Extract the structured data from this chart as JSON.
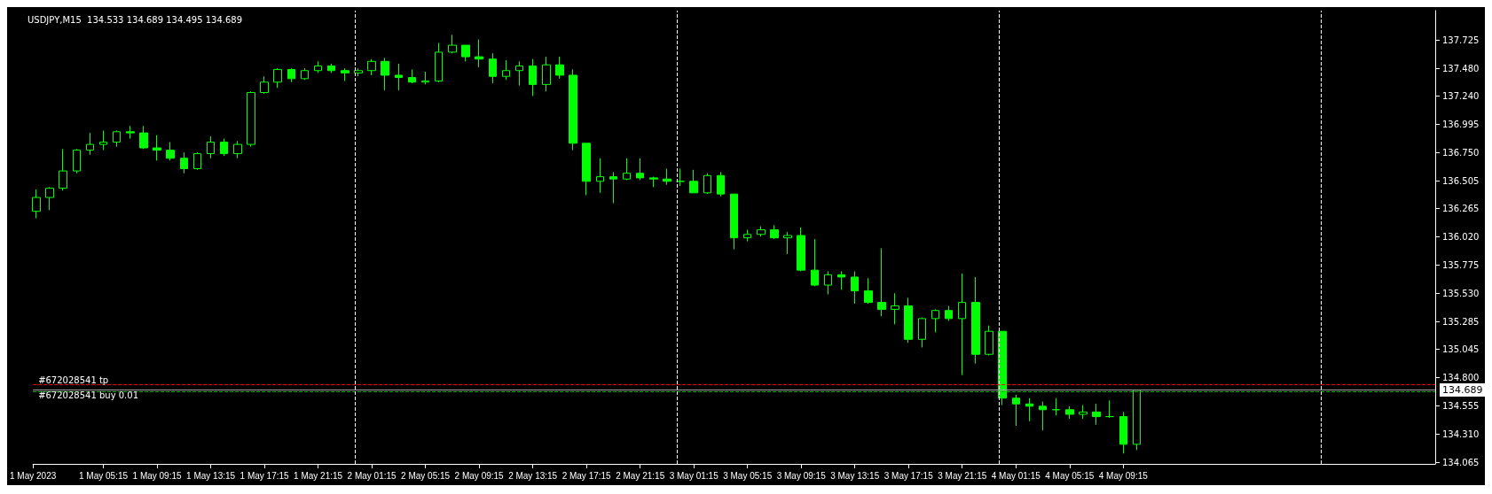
{
  "chart_data": {
    "type": "candlestick",
    "title": "USDJPY,M15  134.533 134.689 134.495 134.689",
    "x": [
      "2023-05-01T00:15",
      "2023-05-01T01:15",
      "2023-05-01T02:15",
      "2023-05-01T03:15",
      "2023-05-01T04:15",
      "2023-05-01T05:15",
      "2023-05-01T06:15",
      "2023-05-01T07:15",
      "2023-05-01T08:15",
      "2023-05-01T09:15",
      "2023-05-01T10:15",
      "2023-05-01T11:15",
      "2023-05-01T12:15",
      "2023-05-01T13:15",
      "2023-05-01T14:15",
      "2023-05-01T15:15",
      "2023-05-01T16:15",
      "2023-05-01T17:15",
      "2023-05-01T18:15",
      "2023-05-01T19:15",
      "2023-05-01T20:15",
      "2023-05-01T21:15",
      "2023-05-01T22:15",
      "2023-05-01T23:15",
      "2023-05-02T00:15",
      "2023-05-02T01:15",
      "2023-05-02T02:15",
      "2023-05-02T03:15",
      "2023-05-02T04:15",
      "2023-05-02T05:15",
      "2023-05-02T06:15",
      "2023-05-02T07:15",
      "2023-05-02T08:15",
      "2023-05-02T09:15",
      "2023-05-02T10:15",
      "2023-05-02T11:15",
      "2023-05-02T12:15",
      "2023-05-02T13:15",
      "2023-05-02T14:15",
      "2023-05-02T15:15",
      "2023-05-02T16:15",
      "2023-05-02T17:15",
      "2023-05-02T18:15",
      "2023-05-02T19:15",
      "2023-05-02T20:15",
      "2023-05-02T21:15",
      "2023-05-02T22:15",
      "2023-05-02T23:15",
      "2023-05-03T00:15",
      "2023-05-03T01:15",
      "2023-05-03T02:15",
      "2023-05-03T03:15",
      "2023-05-03T04:15",
      "2023-05-03T05:15",
      "2023-05-03T06:15",
      "2023-05-03T07:15",
      "2023-05-03T08:15",
      "2023-05-03T09:15",
      "2023-05-03T10:15",
      "2023-05-03T11:15",
      "2023-05-03T12:15",
      "2023-05-03T13:15",
      "2023-05-03T14:15",
      "2023-05-03T15:15",
      "2023-05-03T16:15",
      "2023-05-03T17:15",
      "2023-05-03T18:15",
      "2023-05-03T19:15",
      "2023-05-03T20:15",
      "2023-05-03T21:15",
      "2023-05-03T22:15",
      "2023-05-03T23:15",
      "2023-05-04T00:15",
      "2023-05-04T01:15",
      "2023-05-04T02:15",
      "2023-05-04T03:15",
      "2023-05-04T04:15",
      "2023-05-04T05:15",
      "2023-05-04T06:15",
      "2023-05-04T07:15",
      "2023-05-04T08:15",
      "2023-05-04T09:15",
      "2023-05-04T10:15"
    ],
    "series": [
      {
        "color": "#00ff00",
        "ohlc": [
          [
            136.24,
            136.43,
            136.18,
            136.36
          ],
          [
            136.36,
            136.45,
            136.25,
            136.44
          ],
          [
            136.44,
            136.78,
            136.42,
            136.59
          ],
          [
            136.59,
            136.78,
            136.57,
            136.77
          ],
          [
            136.77,
            136.92,
            136.73,
            136.82
          ],
          [
            136.82,
            136.94,
            136.77,
            136.84
          ],
          [
            136.84,
            136.94,
            136.8,
            136.93
          ],
          [
            136.93,
            136.98,
            136.87,
            136.92
          ],
          [
            136.92,
            136.98,
            136.78,
            136.79
          ],
          [
            136.79,
            136.9,
            136.68,
            136.77
          ],
          [
            136.77,
            136.84,
            136.68,
            136.7
          ],
          [
            136.7,
            136.75,
            136.57,
            136.61
          ],
          [
            136.61,
            136.75,
            136.6,
            136.74
          ],
          [
            136.74,
            136.89,
            136.7,
            136.84
          ],
          [
            136.84,
            136.87,
            136.72,
            136.74
          ],
          [
            136.74,
            136.85,
            136.7,
            136.82
          ],
          [
            136.82,
            137.28,
            136.8,
            137.27
          ],
          [
            137.27,
            137.41,
            137.26,
            137.36
          ],
          [
            137.36,
            137.48,
            137.31,
            137.47
          ],
          [
            137.47,
            137.48,
            137.36,
            137.39
          ],
          [
            137.39,
            137.48,
            137.38,
            137.46
          ],
          [
            137.46,
            137.54,
            137.44,
            137.5
          ],
          [
            137.5,
            137.52,
            137.44,
            137.46
          ],
          [
            137.46,
            137.48,
            137.37,
            137.44
          ],
          [
            137.44,
            137.48,
            137.41,
            137.46
          ],
          [
            137.46,
            137.56,
            137.42,
            137.54
          ],
          [
            137.54,
            137.57,
            137.29,
            137.42
          ],
          [
            137.42,
            137.52,
            137.29,
            137.4
          ],
          [
            137.4,
            137.47,
            137.35,
            137.36
          ],
          [
            137.36,
            137.45,
            137.34,
            137.37
          ],
          [
            137.37,
            137.7,
            137.36,
            137.62
          ],
          [
            137.62,
            137.77,
            137.61,
            137.68
          ],
          [
            137.68,
            137.68,
            137.54,
            137.58
          ],
          [
            137.58,
            137.73,
            137.49,
            137.56
          ],
          [
            137.56,
            137.61,
            137.35,
            137.41
          ],
          [
            137.41,
            137.55,
            137.38,
            137.46
          ],
          [
            137.46,
            137.54,
            137.33,
            137.5
          ],
          [
            137.5,
            137.56,
            137.24,
            137.34
          ],
          [
            137.34,
            137.58,
            137.28,
            137.51
          ],
          [
            137.51,
            137.58,
            137.39,
            137.42
          ],
          [
            137.42,
            137.47,
            136.77,
            136.83
          ],
          [
            136.83,
            136.83,
            136.38,
            136.5
          ],
          [
            136.5,
            136.7,
            136.4,
            136.54
          ],
          [
            136.54,
            136.58,
            136.31,
            136.52
          ],
          [
            136.52,
            136.7,
            136.51,
            136.57
          ],
          [
            136.57,
            136.7,
            136.51,
            136.53
          ],
          [
            136.53,
            136.54,
            136.45,
            136.52
          ],
          [
            136.52,
            136.61,
            136.47,
            136.5
          ],
          [
            136.5,
            136.61,
            136.46,
            136.5
          ],
          [
            136.5,
            136.6,
            136.4,
            136.4
          ],
          [
            136.4,
            136.57,
            136.39,
            136.55
          ],
          [
            136.55,
            136.58,
            136.37,
            136.39
          ],
          [
            136.39,
            136.39,
            135.91,
            136.01
          ],
          [
            136.01,
            136.08,
            135.98,
            136.04
          ],
          [
            136.04,
            136.11,
            136.02,
            136.08
          ],
          [
            136.08,
            136.12,
            136.0,
            136.01
          ],
          [
            136.01,
            136.06,
            135.87,
            136.03
          ],
          [
            136.03,
            136.1,
            135.72,
            135.73
          ],
          [
            135.73,
            136.0,
            135.59,
            135.6
          ],
          [
            135.6,
            135.72,
            135.52,
            135.69
          ],
          [
            135.69,
            135.72,
            135.56,
            135.67
          ],
          [
            135.67,
            135.72,
            135.44,
            135.55
          ],
          [
            135.55,
            135.66,
            135.44,
            135.45
          ],
          [
            135.45,
            135.92,
            135.33,
            135.39
          ],
          [
            135.39,
            135.53,
            135.26,
            135.42
          ],
          [
            135.42,
            135.49,
            135.1,
            135.13
          ],
          [
            135.13,
            135.32,
            135.06,
            135.31
          ],
          [
            135.31,
            135.39,
            135.19,
            135.38
          ],
          [
            135.38,
            135.42,
            135.29,
            135.31
          ],
          [
            135.31,
            135.7,
            134.82,
            135.45
          ],
          [
            135.45,
            135.67,
            134.92,
            135.0
          ],
          [
            135.0,
            135.25,
            134.99,
            135.2
          ],
          [
            135.2,
            135.2,
            134.56,
            134.62
          ],
          [
            134.62,
            134.65,
            134.38,
            134.57
          ],
          [
            134.57,
            134.62,
            134.42,
            134.55
          ],
          [
            134.55,
            134.59,
            134.34,
            134.52
          ],
          [
            134.52,
            134.62,
            134.47,
            134.52
          ],
          [
            134.52,
            134.55,
            134.44,
            134.48
          ],
          [
            134.48,
            134.56,
            134.44,
            134.5
          ],
          [
            134.5,
            134.57,
            134.39,
            134.46
          ],
          [
            134.46,
            134.6,
            134.45,
            134.46
          ],
          [
            134.46,
            134.5,
            134.14,
            134.22
          ],
          [
            134.22,
            134.69,
            134.17,
            134.689
          ]
        ]
      }
    ],
    "xlim": [
      "2023-05-01T00:00",
      "2023-05-05T08:30"
    ],
    "xticks": [
      {
        "value": "2023-05-01T00:00",
        "label": "1 May 2023"
      },
      {
        "value": "2023-05-01T05:15",
        "label": "1 May 05:15"
      },
      {
        "value": "2023-05-01T09:15",
        "label": "1 May 09:15"
      },
      {
        "value": "2023-05-01T13:15",
        "label": "1 May 13:15"
      },
      {
        "value": "2023-05-01T17:15",
        "label": "1 May 17:15"
      },
      {
        "value": "2023-05-01T21:15",
        "label": "1 May 21:15"
      },
      {
        "value": "2023-05-02T01:15",
        "label": "2 May 01:15"
      },
      {
        "value": "2023-05-02T05:15",
        "label": "2 May 05:15"
      },
      {
        "value": "2023-05-02T09:15",
        "label": "2 May 09:15"
      },
      {
        "value": "2023-05-02T13:15",
        "label": "2 May 13:15"
      },
      {
        "value": "2023-05-02T17:15",
        "label": "2 May 17:15"
      },
      {
        "value": "2023-05-02T21:15",
        "label": "2 May 21:15"
      },
      {
        "value": "2023-05-03T01:15",
        "label": "3 May 01:15"
      },
      {
        "value": "2023-05-03T05:15",
        "label": "3 May 05:15"
      },
      {
        "value": "2023-05-03T09:15",
        "label": "3 May 09:15"
      },
      {
        "value": "2023-05-03T13:15",
        "label": "3 May 13:15"
      },
      {
        "value": "2023-05-03T17:15",
        "label": "3 May 17:15"
      },
      {
        "value": "2023-05-03T21:15",
        "label": "3 May 21:15"
      },
      {
        "value": "2023-05-04T01:15",
        "label": "4 May 01:15"
      },
      {
        "value": "2023-05-04T05:15",
        "label": "4 May 05:15"
      },
      {
        "value": "2023-05-04T09:15",
        "label": "4 May 09:15"
      }
    ],
    "ylim": [
      134.05,
      137.98
    ],
    "yticks": [
      134.065,
      {
        "value": 134.31,
        "label": "134.310"
      },
      134.555,
      {
        "value": 134.8,
        "label": "134.800"
      },
      135.045,
      135.285,
      {
        "value": 135.53,
        "label": "135.530"
      },
      135.775,
      {
        "value": 136.02,
        "label": "136.020"
      },
      136.265,
      136.505,
      {
        "value": 136.75,
        "label": "136.750"
      },
      136.995,
      {
        "value": 137.24,
        "label": "137.240"
      },
      {
        "value": 137.48,
        "label": "137.480"
      },
      137.725
    ],
    "ref_lines": [
      {
        "axis": "y",
        "value": 134.74,
        "label": "#672028541 tp",
        "color": "#ff0000",
        "line_style": "dashed"
      },
      {
        "axis": "y",
        "value": 134.68,
        "label": "#672028541 buy 0.01",
        "color": "#00c000",
        "line_style": "dashed"
      },
      {
        "axis": "y",
        "value": 134.689,
        "label": "134.689",
        "color": "#a0a0a0",
        "line_style": "solid"
      },
      {
        "axis": "x",
        "value": "2023-05-02T00:00",
        "color": "#ffffff",
        "line_style": "dashed"
      },
      {
        "axis": "x",
        "value": "2023-05-03T00:00",
        "color": "#ffffff",
        "line_style": "dashed"
      },
      {
        "axis": "x",
        "value": "2023-05-04T00:00",
        "color": "#ffffff",
        "line_style": "dashed"
      },
      {
        "axis": "x",
        "value": "2023-05-05T00:00",
        "color": "#ffffff",
        "line_style": "dashed"
      }
    ],
    "grid": false
  }
}
